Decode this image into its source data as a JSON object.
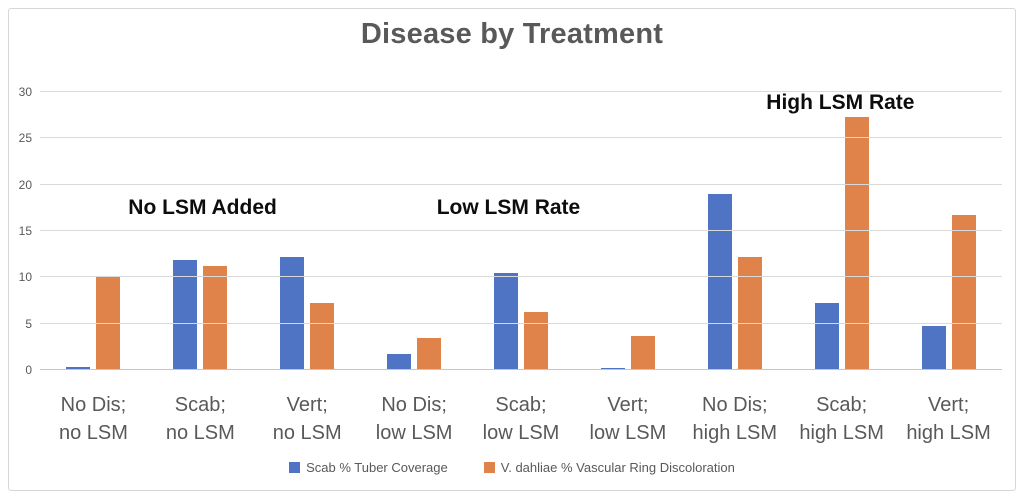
{
  "window": {
    "background": "#ffffff",
    "border_color": "#d8d8d8"
  },
  "chart_data": {
    "type": "bar",
    "title": "Disease by Treatment",
    "title_color": "#595959",
    "categories": [
      [
        "No Dis;",
        "no LSM"
      ],
      [
        "Scab;",
        "no LSM"
      ],
      [
        "Vert;",
        "no LSM"
      ],
      [
        "No Dis;",
        "low LSM"
      ],
      [
        "Scab;",
        "low LSM"
      ],
      [
        "Vert;",
        "low LSM"
      ],
      [
        "No Dis;",
        "high LSM"
      ],
      [
        "Scab;",
        "high LSM"
      ],
      [
        "Vert;",
        "high LSM"
      ]
    ],
    "series": [
      {
        "name": "Scab % Tuber Coverage",
        "color": "#4E74C3",
        "values": [
          0.3,
          11.9,
          12.2,
          1.7,
          10.5,
          0.2,
          19,
          7.2,
          4.8
        ]
      },
      {
        "name": "V. dahliae % Vascular Ring Discoloration",
        "color": "#E0834A",
        "values": [
          10.1,
          11.2,
          7.2,
          3.5,
          6.3,
          3.7,
          12.2,
          27.3,
          16.7
        ]
      }
    ],
    "y_ticks": [
      0,
      5,
      10,
      15,
      20,
      25,
      30
    ],
    "ylim": [
      0,
      30
    ],
    "grid": true,
    "gridline_color": "#d9d9d9",
    "axis_label_color": "#595959",
    "legend_position": "bottom",
    "annotations": [
      {
        "text": "No LSM Added",
        "x_pct": 16.9,
        "y_value": 17.5
      },
      {
        "text": "Low LSM Rate",
        "x_pct": 48.7,
        "y_value": 17.5
      },
      {
        "text": "High LSM Rate",
        "x_pct": 83.2,
        "y_value": 28.8
      }
    ]
  }
}
